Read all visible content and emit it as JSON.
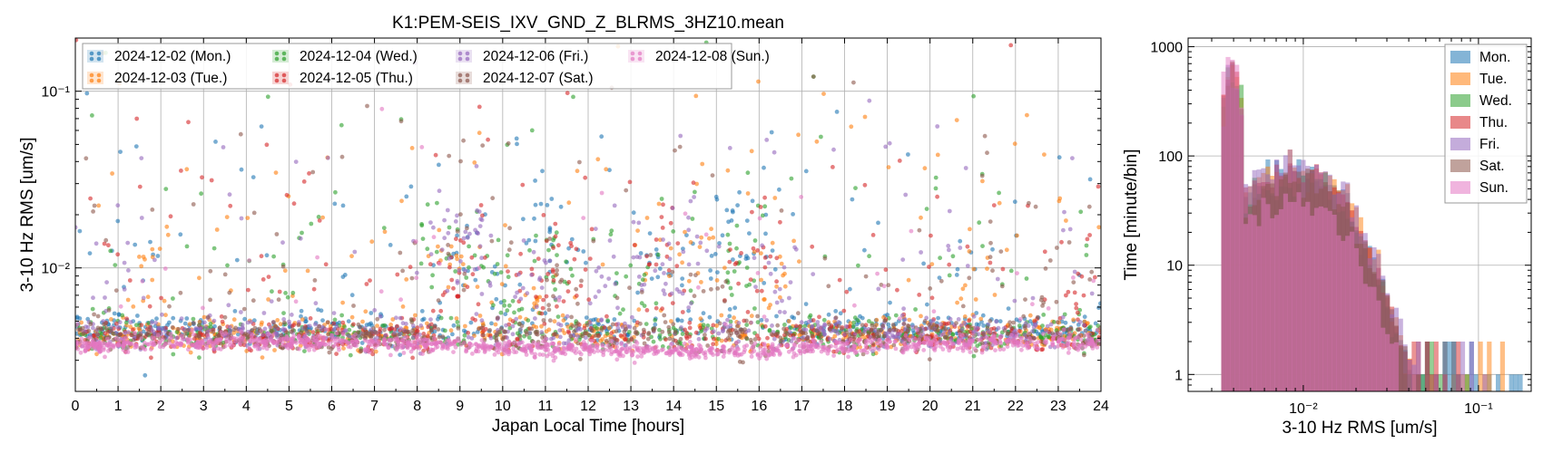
{
  "chart_data": [
    {
      "type": "scatter",
      "title": "K1:PEM-SEIS_IXV_GND_Z_BLRMS_3HZ10.mean",
      "xlabel": "Japan Local Time [hours]",
      "ylabel": "3-10 Hz RMS [um/s]",
      "xlim": [
        0,
        24
      ],
      "ylim": [
        0.002,
        0.2
      ],
      "yscale": "log",
      "grid": true,
      "legend_position": "top-left",
      "x_ticks": [
        "0",
        "1",
        "2",
        "3",
        "4",
        "5",
        "6",
        "7",
        "8",
        "9",
        "10",
        "11",
        "12",
        "13",
        "14",
        "15",
        "16",
        "17",
        "18",
        "19",
        "20",
        "21",
        "22",
        "23",
        "24"
      ],
      "y_ticks": [
        {
          "value": 0.01,
          "label": "10⁻²"
        },
        {
          "value": 0.1,
          "label": "10⁻¹"
        }
      ],
      "series": [
        {
          "name": "2024-12-02 (Mon.)",
          "color": "#1f77b4",
          "floor": 0.0045,
          "peaks": [
            [
              9.2,
              0.013
            ],
            [
              10.2,
              0.008
            ],
            [
              11.0,
              0.022
            ],
            [
              11.5,
              0.012
            ],
            [
              13.4,
              0.011
            ],
            [
              14.0,
              0.009
            ],
            [
              15.3,
              0.016
            ],
            [
              16.0,
              0.014
            ]
          ]
        },
        {
          "name": "2024-12-03 (Tue.)",
          "color": "#ff7f0e",
          "floor": 0.0042,
          "peaks": [
            [
              1.8,
              0.008
            ],
            [
              8.8,
              0.011
            ],
            [
              10.5,
              0.007
            ],
            [
              13.5,
              0.012
            ],
            [
              14.5,
              0.013
            ],
            [
              16.2,
              0.008
            ],
            [
              21.0,
              0.007
            ]
          ]
        },
        {
          "name": "2024-12-04 (Wed.)",
          "color": "#2ca02c",
          "floor": 0.0042,
          "peaks": [
            [
              8.5,
              0.012
            ],
            [
              9.6,
              0.008
            ],
            [
              10.3,
              0.006
            ],
            [
              11.2,
              0.009
            ],
            [
              13.0,
              0.007
            ],
            [
              15.5,
              0.01
            ]
          ]
        },
        {
          "name": "2024-12-05 (Thu.)",
          "color": "#d62728",
          "floor": 0.0041,
          "peaks": [
            [
              8.9,
              0.011
            ],
            [
              10.8,
              0.009
            ],
            [
              11.6,
              0.01
            ],
            [
              13.8,
              0.01
            ],
            [
              15.7,
              0.011
            ],
            [
              23.5,
              0.006
            ]
          ]
        },
        {
          "name": "2024-12-06 (Fri.)",
          "color": "#9467bd",
          "floor": 0.0043,
          "peaks": [
            [
              8.7,
              0.016
            ],
            [
              9.3,
              0.014
            ],
            [
              10.7,
              0.008
            ],
            [
              12.3,
              0.006
            ],
            [
              13.5,
              0.01
            ],
            [
              14.2,
              0.011
            ],
            [
              16.3,
              0.007
            ]
          ]
        },
        {
          "name": "2024-12-07 (Sat.)",
          "color": "#8c564b",
          "floor": 0.0041,
          "peaks": [
            [
              9.0,
              0.008
            ],
            [
              11.4,
              0.007
            ],
            [
              14.8,
              0.006
            ],
            [
              22.5,
              0.006
            ]
          ]
        },
        {
          "name": "2024-12-08 (Sun.)",
          "color": "#e377c2",
          "floor": 0.0036,
          "peaks": []
        }
      ]
    },
    {
      "type": "bar",
      "histtype": "step-filled histogram",
      "xlabel": "3-10 Hz RMS [um/s]",
      "ylabel": "Time [minute/bin]",
      "xlim": [
        0.0022,
        0.2
      ],
      "ylim": [
        0.7,
        1200
      ],
      "xscale": "log",
      "yscale": "log",
      "grid": true,
      "legend_position": "top-right",
      "x_ticks": [
        {
          "value": 0.01,
          "label": "10⁻²"
        },
        {
          "value": 0.1,
          "label": "10⁻¹"
        }
      ],
      "y_ticks": [
        {
          "value": 1,
          "label": "1"
        },
        {
          "value": 10,
          "label": "10"
        },
        {
          "value": 100,
          "label": "100"
        },
        {
          "value": 1000,
          "label": "1000"
        }
      ],
      "series": [
        {
          "name": "Mon.",
          "color": "#1f77b4",
          "peak": 560,
          "tail_end": 0.19,
          "mid": 75
        },
        {
          "name": "Tue.",
          "color": "#ff7f0e",
          "peak": 600,
          "tail_end": 0.15,
          "mid": 80
        },
        {
          "name": "Wed.",
          "color": "#2ca02c",
          "peak": 640,
          "tail_end": 0.09,
          "mid": 60
        },
        {
          "name": "Thu.",
          "color": "#d62728",
          "peak": 620,
          "tail_end": 0.08,
          "mid": 75
        },
        {
          "name": "Fri.",
          "color": "#9467bd",
          "peak": 480,
          "tail_end": 0.11,
          "mid": 85
        },
        {
          "name": "Sat.",
          "color": "#8c564b",
          "peak": 540,
          "tail_end": 0.06,
          "mid": 65
        },
        {
          "name": "Sun.",
          "color": "#e377c2",
          "peak": 850,
          "tail_end": 0.035,
          "mid": 40
        }
      ]
    }
  ]
}
